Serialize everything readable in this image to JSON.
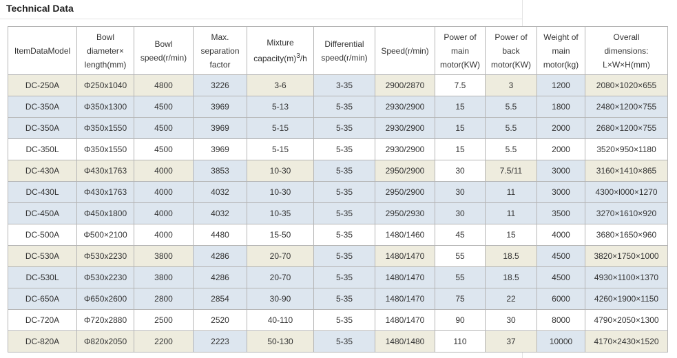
{
  "title": "Technical Data",
  "table": {
    "headers": [
      "ItemDataModel",
      "Bowl diameter× length(mm)",
      "Bowl speed(r/min)",
      "Max. separation factor",
      "Mixture capacity(m)3/h",
      "Differential speed(r/min)",
      "Speed(r/min)",
      "Power of main motor(KW)",
      "Power of back motor(KW)",
      "Weight of main motor(kg)",
      "Overall dimensions: L×W×H(mm)"
    ],
    "header_lines": [
      [
        "ItemDataModel"
      ],
      [
        "Bowl",
        "diameter×",
        "length(mm)"
      ],
      [
        "Bowl",
        "speed(r/min)"
      ],
      [
        "Max.",
        "separation",
        "factor"
      ],
      [
        "Mixture",
        "capacity(m)3/h"
      ],
      [
        "Differential",
        "speed(r/min)"
      ],
      [
        "Speed(r/min)"
      ],
      [
        "Power of",
        "main",
        "motor(KW)"
      ],
      [
        "Power of",
        "back",
        "motor(KW)"
      ],
      [
        "Weight of",
        "main",
        "motor(kg)"
      ],
      [
        "Overall",
        "dimensions:",
        "L×W×H(mm)"
      ]
    ],
    "rows": [
      [
        "DC-250A",
        "Φ250x1040",
        "4800",
        "3226",
        "3-6",
        "3-35",
        "2900/2870",
        "7.5",
        "3",
        "1200",
        "2080×1020×655"
      ],
      [
        "DC-350A",
        "Φ350x1300",
        "4500",
        "3969",
        "5-13",
        "5-35",
        "2930/2900",
        "15",
        "5.5",
        "1800",
        "2480×1200×755"
      ],
      [
        "DC-350A",
        "Φ350x1550",
        "4500",
        "3969",
        "5-15",
        "5-35",
        "2930/2900",
        "15",
        "5.5",
        "2000",
        "2680×1200×755"
      ],
      [
        "DC-350L",
        "Φ350x1550",
        "4500",
        "3969",
        "5-15",
        "5-35",
        "2930/2900",
        "15",
        "5.5",
        "2000",
        "3520×950×1180"
      ],
      [
        "DC-430A",
        "Φ430x1763",
        "4000",
        "3853",
        "10-30",
        "5-35",
        "2950/2900",
        "30",
        "7.5/11",
        "3000",
        "3160×1410×865"
      ],
      [
        "DC-430L",
        "Φ430x1763",
        "4000",
        "4032",
        "10-30",
        "5-35",
        "2950/2900",
        "30",
        "11",
        "3000",
        "4300×l000×1270"
      ],
      [
        "DC-450A",
        "Φ450x1800",
        "4000",
        "4032",
        "10-35",
        "5-35",
        "2950/2930",
        "30",
        "11",
        "3500",
        "3270×1610×920"
      ],
      [
        "DC-500A",
        "Φ500×2100",
        "4000",
        "4480",
        "15-50",
        "5-35",
        "1480/1460",
        "45",
        "15",
        "4000",
        "3680×1650×960"
      ],
      [
        "DC-530A",
        "Φ530x2230",
        "3800",
        "4286",
        "20-70",
        "5-35",
        "1480/1470",
        "55",
        "18.5",
        "4500",
        "3820×1750×1000"
      ],
      [
        "DC-530L",
        "Φ530x2230",
        "3800",
        "4286",
        "20-70",
        "5-35",
        "1480/1470",
        "55",
        "18.5",
        "4500",
        "4930×1100×1370"
      ],
      [
        "DC-650A",
        "Φ650x2600",
        "2800",
        "2854",
        "30-90",
        "5-35",
        "1480/1470",
        "75",
        "22",
        "6000",
        "4260×1900×1150"
      ],
      [
        "DC-720A",
        "Φ720x2880",
        "2500",
        "2520",
        "40-110",
        "5-35",
        "1480/1470",
        "90",
        "30",
        "8000",
        "4790×2050×1300"
      ],
      [
        "DC-820A",
        "Φ820x2050",
        "2200",
        "2223",
        "50-130",
        "5-35",
        "1480/1480",
        "110",
        "37",
        "10000",
        "4170×2430×1520"
      ]
    ]
  },
  "colors": {
    "beige": "#eeecde",
    "blue": "#dde6ef",
    "white": "#ffffff",
    "border": "#b4b4b4"
  }
}
